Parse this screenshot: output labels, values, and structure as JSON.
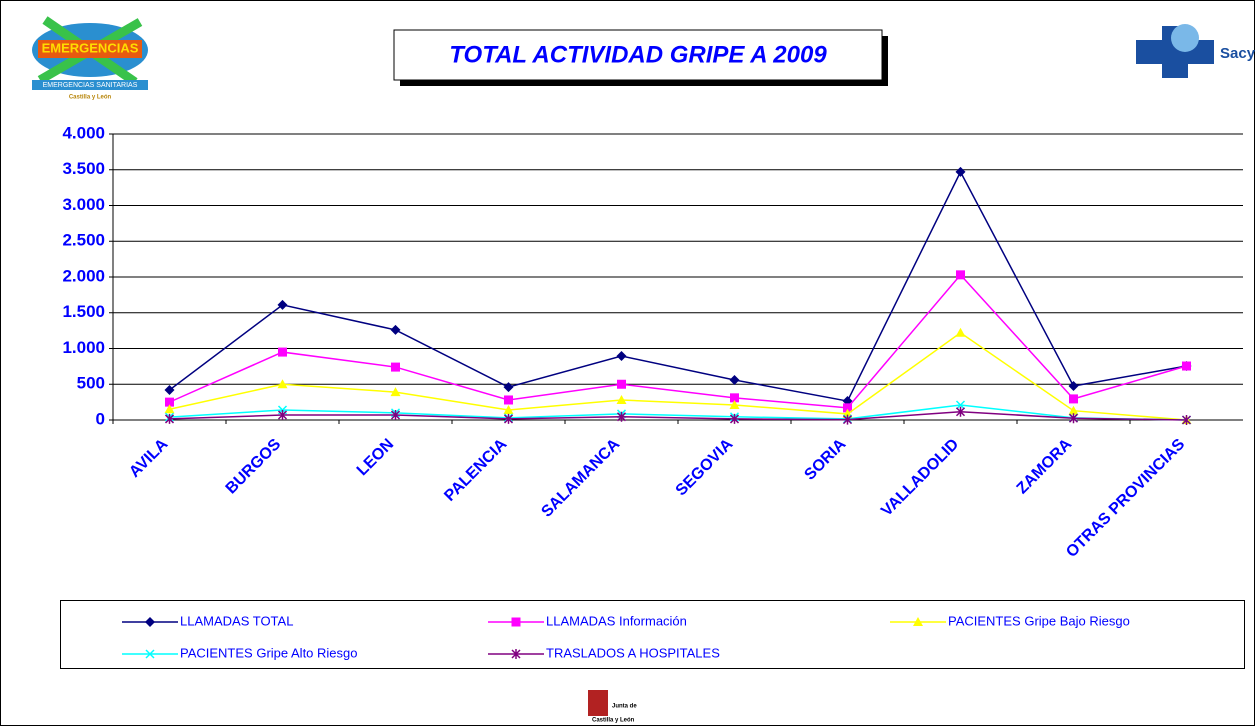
{
  "chart_data": {
    "type": "line",
    "title": "TOTAL ACTIVIDAD GRIPE A 2009",
    "categories": [
      "AVILA",
      "BURGOS",
      "LEON",
      "PALENCIA",
      "SALAMANCA",
      "SEGOVIA",
      "SORIA",
      "VALLADOLID",
      "ZAMORA",
      "OTRAS PROVINCIAS"
    ],
    "series": [
      {
        "name": "LLAMADAS TOTAL",
        "color": "#000080",
        "marker": "diamond",
        "values": [
          420,
          1610,
          1260,
          460,
          895,
          560,
          265,
          3470,
          475,
          755
        ]
      },
      {
        "name": "LLAMADAS Información",
        "color": "#ff00ff",
        "marker": "square",
        "values": [
          250,
          950,
          740,
          280,
          500,
          310,
          170,
          2030,
          295,
          755
        ]
      },
      {
        "name": "PACIENTES Gripe Bajo Riesgo",
        "color": "#ffff00",
        "marker": "triangle",
        "values": [
          150,
          500,
          390,
          140,
          280,
          210,
          85,
          1220,
          130,
          0
        ]
      },
      {
        "name": "PACIENTES Gripe Alto Riesgo",
        "color": "#00ffff",
        "marker": "x",
        "values": [
          40,
          140,
          100,
          30,
          85,
          45,
          15,
          210,
          30,
          0
        ]
      },
      {
        "name": "TRASLADOS A HOSPITALES",
        "color": "#800080",
        "marker": "star",
        "values": [
          15,
          70,
          70,
          15,
          45,
          15,
          5,
          115,
          25,
          0
        ]
      }
    ],
    "ylim": [
      0,
      4000
    ],
    "yticks": [
      0,
      500,
      {
        "value": 1000,
        "label": "1.000"
      },
      {
        "value": 1500,
        "label": "1.500"
      },
      {
        "value": 2000,
        "label": "2.000"
      },
      {
        "value": 2500,
        "label": "2.500"
      },
      {
        "value": 3000,
        "label": "3.000"
      },
      {
        "value": 3500,
        "label": "3.500"
      },
      {
        "value": 4000,
        "label": "4.000"
      }
    ],
    "grid": true,
    "legend": "bottom"
  },
  "logos": {
    "left": [
      "EMERGENCIAS",
      "EMERGENCIAS SANITARIAS",
      "Castilla y León"
    ],
    "right": "Sacyl",
    "bottom": [
      "Junta de",
      "Castilla y León"
    ]
  }
}
